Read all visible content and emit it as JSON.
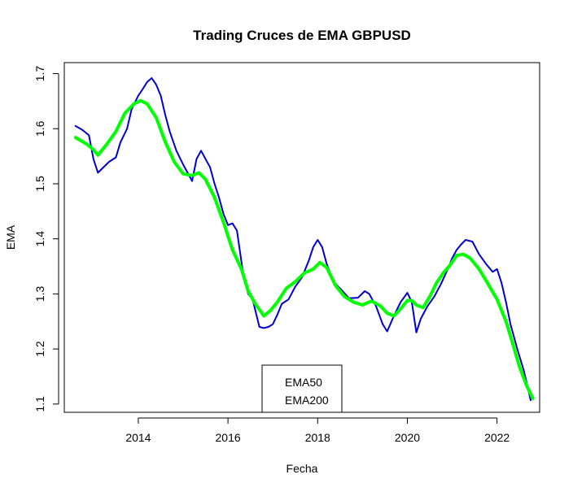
{
  "chart_data": {
    "type": "line",
    "title": "Trading Cruces de EMA GBPUSD",
    "xlabel": "Fecha",
    "ylabel": "EMA",
    "xlim": [
      2012.35,
      2022.95
    ],
    "ylim": [
      1.085,
      1.72
    ],
    "x_ticks": [
      2014,
      2016,
      2018,
      2020,
      2022
    ],
    "x_tick_labels": [
      "2014",
      "2016",
      "2018",
      "2020",
      "2022"
    ],
    "y_ticks": [
      1.1,
      1.2,
      1.3,
      1.4,
      1.5,
      1.6,
      1.7
    ],
    "y_tick_labels": [
      "1.1",
      "1.2",
      "1.3",
      "1.4",
      "1.5",
      "1.6",
      "1.7"
    ],
    "grid": false,
    "legend": {
      "placement": "bottom-center",
      "entries": [
        "EMA50",
        "EMA200"
      ]
    },
    "series": [
      {
        "name": "EMA50",
        "color": "#0000CD",
        "x": [
          2012.6,
          2012.75,
          2012.9,
          2013.0,
          2013.1,
          2013.2,
          2013.35,
          2013.5,
          2013.6,
          2013.75,
          2013.85,
          2014.0,
          2014.1,
          2014.2,
          2014.3,
          2014.4,
          2014.5,
          2014.6,
          2014.7,
          2014.85,
          2015.0,
          2015.1,
          2015.2,
          2015.3,
          2015.4,
          2015.5,
          2015.6,
          2015.7,
          2015.8,
          2015.9,
          2016.0,
          2016.1,
          2016.2,
          2016.35,
          2016.45,
          2016.55,
          2016.7,
          2016.8,
          2016.9,
          2017.0,
          2017.1,
          2017.2,
          2017.35,
          2017.5,
          2017.65,
          2017.8,
          2017.9,
          2018.0,
          2018.1,
          2018.2,
          2018.35,
          2018.5,
          2018.7,
          2018.9,
          2019.05,
          2019.15,
          2019.3,
          2019.45,
          2019.55,
          2019.7,
          2019.85,
          2020.0,
          2020.1,
          2020.2,
          2020.3,
          2020.45,
          2020.6,
          2020.75,
          2020.9,
          2021.0,
          2021.1,
          2021.2,
          2021.3,
          2021.45,
          2021.6,
          2021.75,
          2021.9,
          2022.0,
          2022.1,
          2022.2,
          2022.3,
          2022.45,
          2022.6,
          2022.75
        ],
        "values": [
          1.605,
          1.598,
          1.588,
          1.545,
          1.52,
          1.528,
          1.54,
          1.548,
          1.575,
          1.6,
          1.635,
          1.66,
          1.672,
          1.685,
          1.692,
          1.68,
          1.66,
          1.625,
          1.595,
          1.56,
          1.535,
          1.52,
          1.505,
          1.545,
          1.56,
          1.545,
          1.53,
          1.5,
          1.475,
          1.445,
          1.425,
          1.428,
          1.415,
          1.33,
          1.3,
          1.29,
          1.24,
          1.238,
          1.24,
          1.245,
          1.262,
          1.282,
          1.29,
          1.313,
          1.33,
          1.36,
          1.385,
          1.398,
          1.385,
          1.355,
          1.322,
          1.31,
          1.292,
          1.293,
          1.305,
          1.3,
          1.278,
          1.245,
          1.232,
          1.26,
          1.285,
          1.302,
          1.285,
          1.23,
          1.255,
          1.278,
          1.295,
          1.318,
          1.345,
          1.365,
          1.38,
          1.39,
          1.398,
          1.395,
          1.372,
          1.355,
          1.34,
          1.345,
          1.32,
          1.285,
          1.245,
          1.2,
          1.16,
          1.107
        ]
      },
      {
        "name": "EMA200",
        "color": "#00FF00",
        "x": [
          2012.6,
          2012.85,
          2013.0,
          2013.1,
          2013.3,
          2013.5,
          2013.7,
          2013.9,
          2014.05,
          2014.2,
          2014.4,
          2014.6,
          2014.8,
          2015.0,
          2015.2,
          2015.35,
          2015.5,
          2015.7,
          2015.9,
          2016.1,
          2016.3,
          2016.45,
          2016.6,
          2016.8,
          2016.95,
          2017.1,
          2017.3,
          2017.5,
          2017.7,
          2017.9,
          2018.05,
          2018.2,
          2018.4,
          2018.6,
          2018.8,
          2019.0,
          2019.2,
          2019.4,
          2019.55,
          2019.7,
          2019.85,
          2020.0,
          2020.1,
          2020.2,
          2020.35,
          2020.5,
          2020.65,
          2020.8,
          2020.95,
          2021.1,
          2021.25,
          2021.4,
          2021.6,
          2021.8,
          2022.0,
          2022.2,
          2022.35,
          2022.5,
          2022.65,
          2022.8
        ],
        "values": [
          1.584,
          1.572,
          1.562,
          1.552,
          1.572,
          1.595,
          1.628,
          1.645,
          1.651,
          1.645,
          1.62,
          1.576,
          1.54,
          1.518,
          1.515,
          1.52,
          1.508,
          1.475,
          1.43,
          1.38,
          1.345,
          1.305,
          1.283,
          1.26,
          1.27,
          1.285,
          1.31,
          1.322,
          1.338,
          1.345,
          1.357,
          1.348,
          1.315,
          1.295,
          1.285,
          1.28,
          1.287,
          1.278,
          1.265,
          1.26,
          1.273,
          1.288,
          1.288,
          1.28,
          1.275,
          1.295,
          1.32,
          1.338,
          1.352,
          1.37,
          1.372,
          1.365,
          1.345,
          1.318,
          1.29,
          1.25,
          1.21,
          1.168,
          1.135,
          1.11
        ]
      }
    ]
  }
}
